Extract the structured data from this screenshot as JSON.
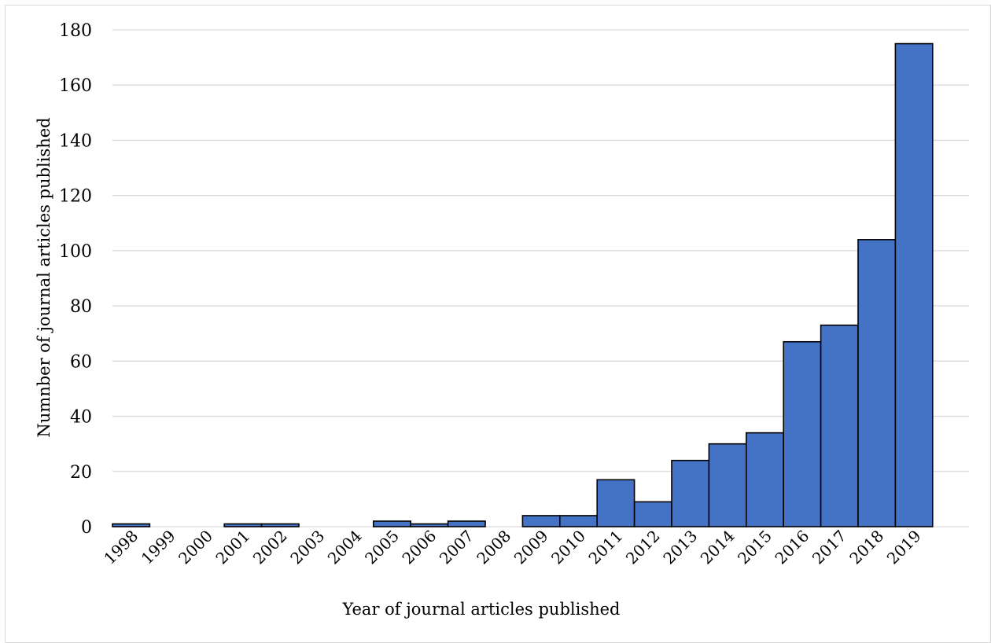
{
  "chart_data": {
    "type": "bar",
    "categories": [
      "1998",
      "1999",
      "2000",
      "2001",
      "2002",
      "2003",
      "2004",
      "2005",
      "2006",
      "2007",
      "2008",
      "2009",
      "2010",
      "2011",
      "2012",
      "2013",
      "2014",
      "2015",
      "2016",
      "2017",
      "2018",
      "2019"
    ],
    "values": [
      1,
      0,
      0,
      1,
      1,
      0,
      0,
      2,
      1,
      2,
      0,
      4,
      4,
      17,
      9,
      24,
      30,
      34,
      67,
      73,
      104,
      175
    ],
    "title": "",
    "xlabel": "Year of journal articles published",
    "ylabel": "Numnber of journal articles published",
    "ylim": [
      0,
      180
    ],
    "yticks": [
      0,
      20,
      40,
      60,
      80,
      100,
      120,
      140,
      160,
      180
    ],
    "grid": true,
    "legend": "none",
    "colors": {
      "bar_fill": "#4472c4",
      "bar_edge": "#000000",
      "grid": "#d9d9d9"
    }
  }
}
